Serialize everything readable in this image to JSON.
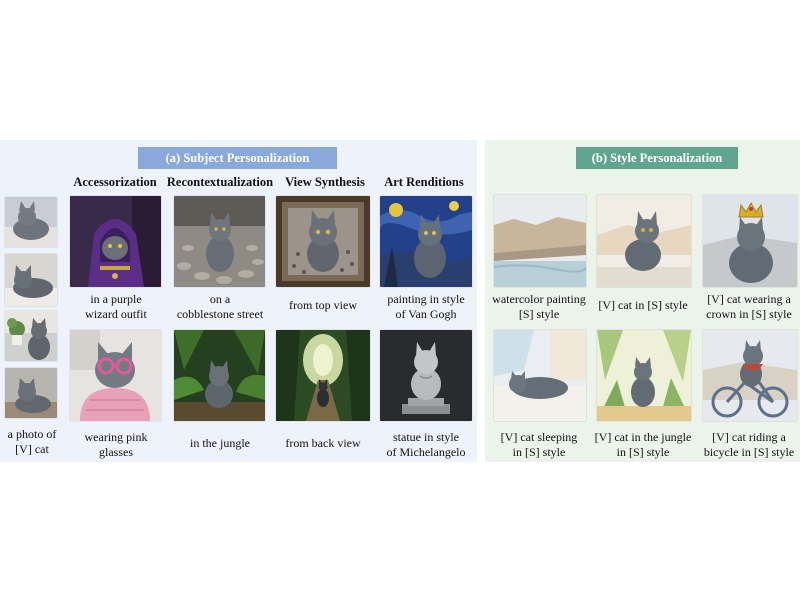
{
  "subject": {
    "banner": "(a) Subject Personalization",
    "columns": [
      "Accessorization",
      "Recontextualization",
      "View Synthesis",
      "Art Renditions"
    ],
    "reference_caption": "a photo of\n[V] cat",
    "row1_captions": [
      "in a purple\nwizard outfit",
      "on a\ncobblestone street",
      "from top view",
      "painting in style\nof Van Gogh"
    ],
    "row2_captions": [
      "wearing pink\nglasses",
      "in the jungle",
      "from back view",
      "statue in style\nof Michelangelo"
    ]
  },
  "style": {
    "banner": "(b) Style Personalization",
    "row1_captions": [
      "watercolor painting\n[S] style",
      "[V] cat in [S] style",
      "[V] cat wearing a\ncrown in [S] style"
    ],
    "row2_captions": [
      "[V] cat sleeping\nin [S] style",
      "[V] cat in the jungle\nin [S] style",
      "[V] cat riding a\nbicycle in [S] style"
    ]
  },
  "colors": {
    "subject_panel": "#eef2fb",
    "subject_banner": "#89a8dc",
    "style_panel": "#ebf3ea",
    "style_banner": "#5fa58f"
  },
  "images": {
    "reference": [
      "cat-on-blanket-photo",
      "cat-lying-photo",
      "cat-with-plant-photo",
      "cat-on-floor-photo"
    ],
    "subject_row1": [
      "cat-wizard-purple",
      "cat-cobblestone-street",
      "cat-top-view-box",
      "cat-van-gogh-painting"
    ],
    "subject_row2": [
      "cat-pink-glasses",
      "cat-jungle",
      "cat-back-view-forest",
      "cat-marble-statue"
    ],
    "style_row1": [
      "watercolor-reference-cliffs",
      "watercolor-cat-sitting",
      "watercolor-cat-crown"
    ],
    "style_row2": [
      "watercolor-cat-sleeping",
      "watercolor-cat-jungle",
      "watercolor-cat-bicycle"
    ]
  }
}
